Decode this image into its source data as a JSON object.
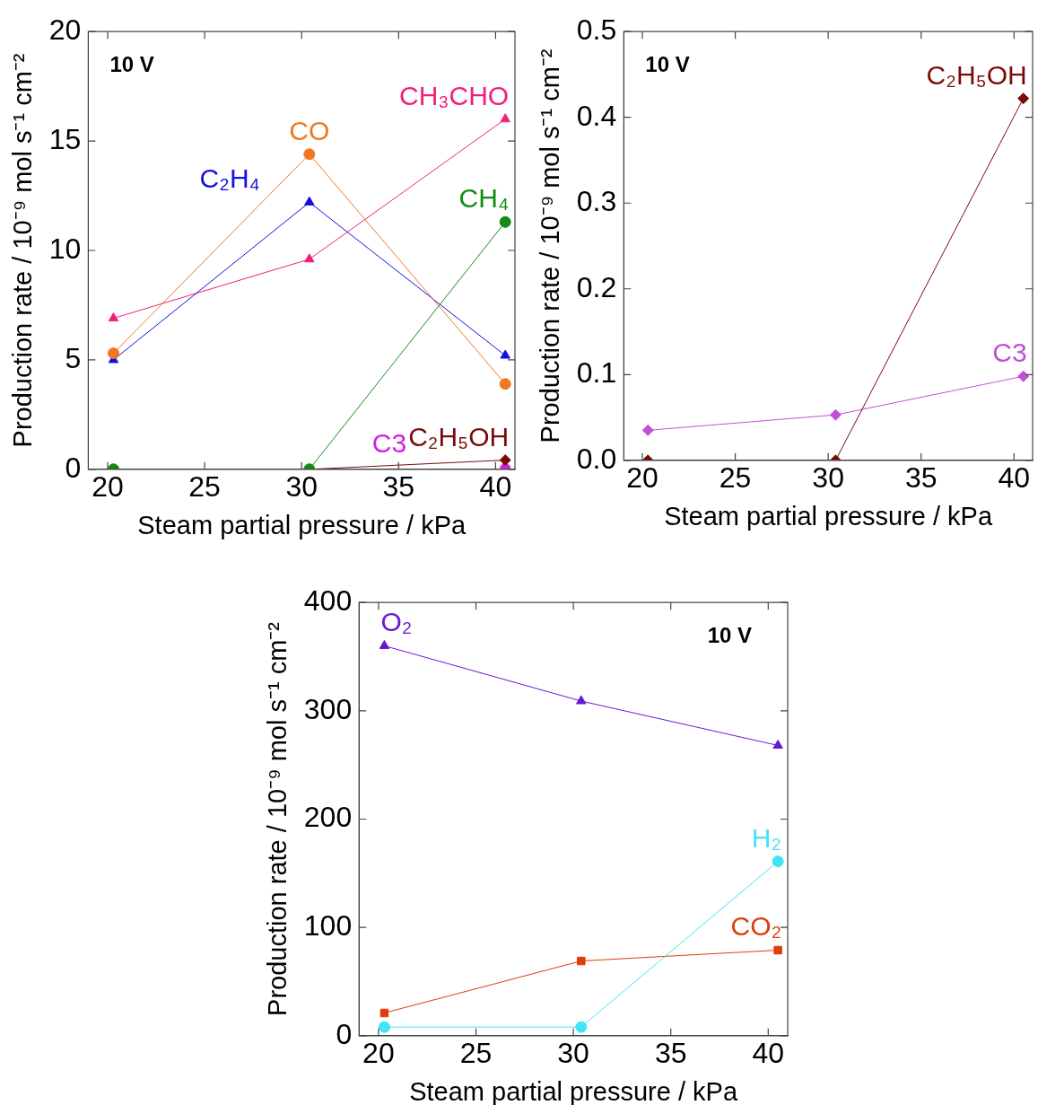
{
  "chart_data": [
    {
      "type": "line",
      "xlabel": "Steam partial pressure / kPa",
      "ylabel": "Production rate / 10⁻⁹ mol s⁻¹ cm⁻²",
      "annotations": [
        "10 V"
      ],
      "xlim": [
        19,
        41
      ],
      "xticks": [
        20,
        25,
        30,
        35,
        40
      ],
      "ylim": [
        0,
        20
      ],
      "yticks": [
        0,
        5,
        10,
        15,
        20
      ],
      "grid": false,
      "legend": false,
      "line_style": "solid",
      "series": [
        {
          "name": "CO",
          "color": "#f07820",
          "marker": "circle",
          "x": [
            20.3,
            30.4,
            40.5
          ],
          "values": [
            5.3,
            14.4,
            3.9
          ]
        },
        {
          "name": "C₂H₄",
          "color": "#1010e0",
          "marker": "triangle",
          "x": [
            20.3,
            30.4,
            40.5
          ],
          "values": [
            5.0,
            12.2,
            5.2
          ]
        },
        {
          "name": "CH₃CHO",
          "color": "#f0207a",
          "marker": "triangle",
          "x": [
            20.3,
            30.4,
            40.5
          ],
          "values": [
            6.9,
            9.6,
            16.0
          ]
        },
        {
          "name": "CH₄",
          "color": "#138a13",
          "marker": "circle",
          "x": [
            20.3,
            30.4,
            40.5
          ],
          "values": [
            0,
            0,
            11.3
          ]
        },
        {
          "name": "C₂H₅OH",
          "color": "#7a0a0a",
          "marker": "diamond",
          "x": [
            20.3,
            30.4,
            40.5
          ],
          "values": [
            0,
            0,
            0.42
          ]
        },
        {
          "name": "C3",
          "color": "#d020e0",
          "marker": "diamond",
          "x": [
            40.5
          ],
          "values": [
            0.1
          ]
        }
      ]
    },
    {
      "type": "line",
      "xlabel": "Steam partial pressure / kPa",
      "ylabel": "Production rate / 10⁻⁹ mol s⁻¹ cm⁻²",
      "annotations": [
        "10 V"
      ],
      "xlim": [
        19,
        41
      ],
      "xticks": [
        20,
        25,
        30,
        35,
        40
      ],
      "ylim": [
        0,
        0.5
      ],
      "yticks": [
        {
          "value": 0,
          "label": "0.0"
        },
        0.1,
        0.2,
        0.3,
        0.4,
        0.5
      ],
      "grid": false,
      "legend": false,
      "line_style": "solid",
      "series": [
        {
          "name": "C₂H₅OH",
          "color": "#7a0a0a",
          "marker": "diamond",
          "x": [
            20.3,
            30.4,
            40.5
          ],
          "values": [
            0,
            0,
            0.422
          ]
        },
        {
          "name": "C3",
          "color": "#c050d8",
          "marker": "diamond",
          "x": [
            20.3,
            30.4,
            40.5
          ],
          "values": [
            0.035,
            0.053,
            0.098
          ]
        }
      ]
    },
    {
      "type": "line",
      "xlabel": "Steam partial pressure / kPa",
      "ylabel": "Production rate / 10⁻⁹ mol s⁻¹ cm⁻²",
      "annotations": [
        "10 V"
      ],
      "xlim": [
        19,
        41
      ],
      "xticks": [
        20,
        25,
        30,
        35,
        40
      ],
      "ylim": [
        0,
        400
      ],
      "yticks": [
        0,
        100,
        200,
        300,
        400
      ],
      "grid": false,
      "legend": false,
      "line_style": "solid",
      "series": [
        {
          "name": "O₂",
          "color": "#6a18d0",
          "marker": "triangle",
          "x": [
            20.3,
            30.4,
            40.5
          ],
          "values": [
            360,
            309,
            268
          ]
        },
        {
          "name": "H₂",
          "color": "#40e4f4",
          "marker": "circle",
          "x": [
            20.3,
            30.4,
            40.5
          ],
          "values": [
            8,
            8,
            161
          ]
        },
        {
          "name": "CO₂",
          "color": "#e03c0c",
          "marker": "square",
          "x": [
            20.3,
            30.4,
            40.5
          ],
          "values": [
            21,
            69,
            79
          ]
        }
      ]
    }
  ]
}
